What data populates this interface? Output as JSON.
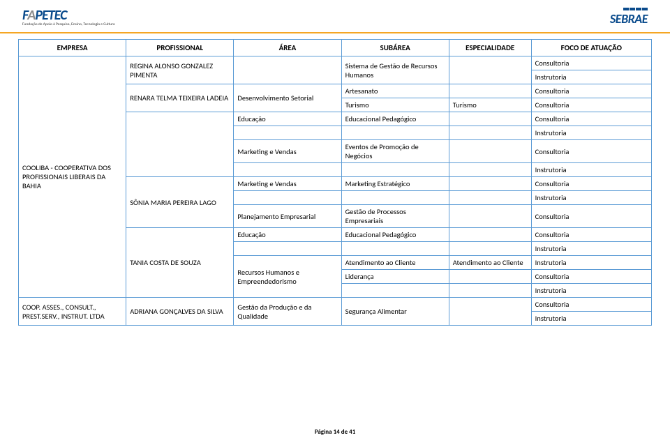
{
  "header": {
    "logo_left_main_1": "F",
    "logo_left_main_2": "A",
    "logo_left_main_3": "PETEC",
    "logo_left_sub": "Fundação de Apoio à Pesquisa, Ensino, Tecnologia e Cultura",
    "logo_right": "SEBRAE"
  },
  "table": {
    "headers": [
      "EMPRESA",
      "PROFISSIONAL",
      "ÁREA",
      "SUBÁREA",
      "ESPECIALIDADE",
      "FOCO DE ATUAÇÃO"
    ],
    "rows": [
      {
        "empresa": "COOLIBA - COOPERATIVA DOS PROFISSIONAIS LIBERAIS DA BAHIA",
        "empresa_rowspan": 16,
        "prof": "REGINA ALONSO GONZALEZ PIMENTA",
        "prof_rowspan": 2,
        "area": "",
        "area_rowspan": 2,
        "sub": "Sistema de Gestão de Recursos Humanos",
        "sub_rowspan": 2,
        "esp": "",
        "esp_rowspan": 2,
        "foco": "Consultoria"
      },
      {
        "foco": "Instrutoria"
      },
      {
        "prof": "RENARA TELMA TEIXEIRA LADEIA",
        "prof_rowspan": 2,
        "area": "Desenvolvimento Setorial",
        "area_rowspan": 2,
        "sub": "Artesanato",
        "esp": "",
        "foco": "Consultoria"
      },
      {
        "sub": "Turismo",
        "esp": "Turismo",
        "foco": "Consultoria"
      },
      {
        "prof": "",
        "prof_rowspan": 4,
        "area": "Educação",
        "sub": "Educacional Pedagógico",
        "esp": "",
        "foco": "Consultoria"
      },
      {
        "area": "",
        "area_rowspan": 3,
        "sub": "",
        "esp": "",
        "foco": "Instrutoria"
      },
      {
        "sub": "Eventos de Promoção de Negócios",
        "sub_prefix_area": "Marketing e Vendas",
        "esp": "",
        "foco": "Consultoria"
      },
      {
        "sub": "",
        "esp": "",
        "foco": "Instrutoria"
      },
      {
        "prof": "SÔNIA MARIA PEREIRA LAGO",
        "prof_rowspan": 3,
        "area": "Marketing e Vendas",
        "sub": "Marketing Estratégico",
        "esp": "",
        "foco": "Consultoria"
      },
      {
        "area": "",
        "area_rowspan": 2,
        "sub": "",
        "esp": "",
        "foco": "Instrutoria"
      },
      {
        "area2": "Planejamento Empresarial",
        "sub": "Gestão de Processos Empresariais",
        "esp": "",
        "foco": "Consultoria"
      },
      {
        "prof": "TANIA COSTA DE SOUZA",
        "prof_rowspan": 5,
        "area": "Educação",
        "sub": "Educacional Pedagógico",
        "esp": "",
        "foco": "Consultoria"
      },
      {
        "area": "",
        "area_rowspan": 4,
        "sub": "",
        "esp": "",
        "foco": "Instrutoria"
      },
      {
        "area3": "Recursos Humanos e Empreendedorismo",
        "sub": "Atendimento ao Cliente",
        "esp": "Atendimento ao Cliente",
        "foco": "Instrutoria"
      },
      {
        "sub": "Liderança",
        "esp": "",
        "foco": "Consultoria"
      },
      {
        "sub": "",
        "esp": "",
        "foco": "Instrutoria"
      },
      {
        "empresa": "COOP. ASSES., CONSULT., PREST.SERV., INSTRUT. LTDA",
        "empresa_rowspan": 2,
        "prof": "ADRIANA GONÇALVES DA SILVA",
        "prof_rowspan": 2,
        "area": "Gestão da Produção e da Qualidade",
        "area_rowspan": 2,
        "sub": "Segurança Alimentar",
        "sub_rowspan": 2,
        "esp": "",
        "esp_rowspan": 2,
        "foco": "Consultoria"
      },
      {
        "foco": "Instrutoria"
      }
    ]
  },
  "footer": "Página 14 de 41",
  "colors": {
    "border": "#5b9bd5",
    "accent_bar": "#f5a623",
    "logo_blue": "#0a4b8c"
  }
}
